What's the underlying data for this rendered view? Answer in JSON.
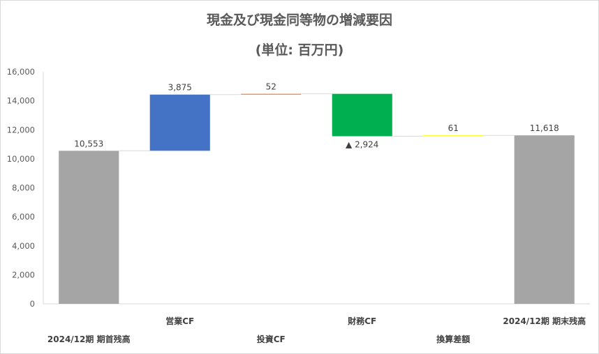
{
  "chart_data": {
    "type": "bar",
    "subtype": "waterfall",
    "title": "現金及び現金同等物の増減要因",
    "subtitle": "(単位: 百万円)",
    "categories": [
      "2024/12期 期首残高",
      "営業CF",
      "投資CF",
      "財務CF",
      "換算差額",
      "2024/12期 期末残高"
    ],
    "category_labels": [
      "2024/12期  期首残高",
      "営業CF",
      "投資CF",
      "財務CF",
      "換算差額",
      "2024/12期  期末残高"
    ],
    "values": [
      10553,
      3875,
      52,
      -2924,
      61,
      11618
    ],
    "bar_kinds": [
      "total",
      "delta",
      "delta",
      "delta",
      "delta",
      "total"
    ],
    "data_labels": [
      "10,553",
      "3,875",
      "52",
      "▲ 2,924",
      "61",
      "11,618"
    ],
    "colors": [
      "#a5a5a5",
      "#4472c4",
      "#ed7d31",
      "#00b050",
      "#ffff00",
      "#a5a5a5"
    ],
    "connector_color": "#d9d9d9",
    "ylim": [
      0,
      16000
    ],
    "yticks": [
      "0",
      "2,000",
      "4,000",
      "6,000",
      "8,000",
      "10,000",
      "12,000",
      "14,000",
      "16,000"
    ],
    "xlabel": "",
    "ylabel": "",
    "grid": false,
    "legend": "none"
  }
}
